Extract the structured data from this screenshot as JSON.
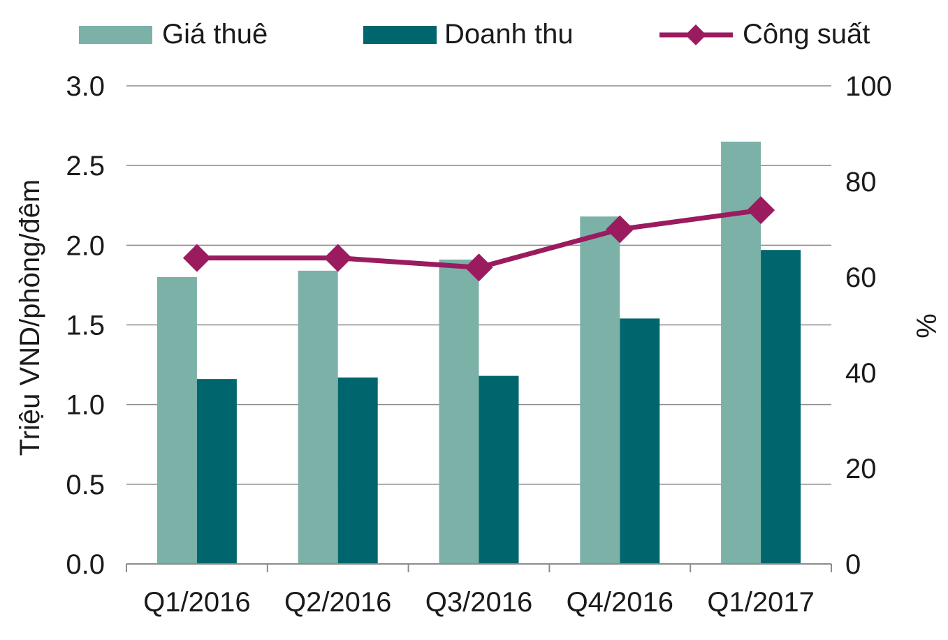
{
  "chart_data": {
    "type": "bar",
    "categories": [
      "Q1/2016",
      "Q2/2016",
      "Q3/2016",
      "Q4/2016",
      "Q1/2017"
    ],
    "series": [
      {
        "name": "Giá thuê",
        "axis": "left",
        "type": "bar",
        "color": "#7cb1a8",
        "values": [
          1.8,
          1.84,
          1.91,
          2.18,
          2.65
        ]
      },
      {
        "name": "Doanh thu",
        "axis": "left",
        "type": "bar",
        "color": "#00656c",
        "values": [
          1.16,
          1.17,
          1.18,
          1.54,
          1.97
        ]
      },
      {
        "name": "Công suất",
        "axis": "right",
        "type": "line",
        "marker": "diamond",
        "color": "#9b1b5f",
        "values": [
          64,
          64,
          62,
          70,
          74
        ]
      }
    ],
    "ylabel": "Triệu VND/phòng/đêm",
    "y2label": "%",
    "ylim": [
      0,
      3.0
    ],
    "y2lim": [
      0,
      100
    ],
    "yticks": [
      "0.0",
      "0.5",
      "1.0",
      "1.5",
      "2.0",
      "2.5",
      "3.0"
    ],
    "y2ticks": [
      "0",
      "20",
      "40",
      "60",
      "80",
      "100"
    ],
    "grid": true,
    "legend_position": "top"
  }
}
